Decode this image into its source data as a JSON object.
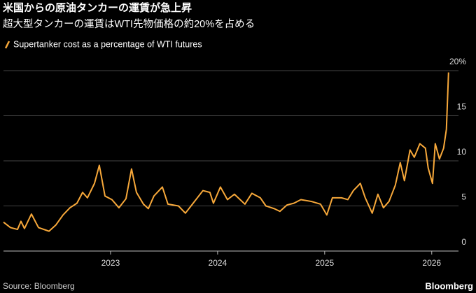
{
  "chart_data": {
    "type": "line",
    "title": "米国からの原油タンカーの運賃が急上昇",
    "subtitle": "超大型タンカーの運賃はWTI先物価格の約20%を占める",
    "source": "Source: Bloomberg",
    "brand": "Bloomberg",
    "x": [
      2022.0,
      2022.065,
      2022.131,
      2022.163,
      2022.196,
      2022.261,
      2022.327,
      2022.425,
      2022.49,
      2022.556,
      2022.621,
      2022.686,
      2022.739,
      2022.784,
      2022.85,
      2022.895,
      2022.948,
      2023.013,
      2023.078,
      2023.144,
      2023.196,
      2023.242,
      2023.307,
      2023.353,
      2023.405,
      2023.484,
      2023.536,
      2023.634,
      2023.699,
      2023.765,
      2023.863,
      2023.928,
      2023.961,
      2024.026,
      2024.092,
      2024.157,
      2024.255,
      2024.32,
      2024.399,
      2024.451,
      2024.529,
      2024.582,
      2024.647,
      2024.712,
      2024.778,
      2024.876,
      2024.961,
      2025.02,
      2025.072,
      2025.157,
      2025.216,
      2025.268,
      2025.333,
      2025.379,
      2025.444,
      2025.497,
      2025.549,
      2025.601,
      2025.66,
      2025.706,
      2025.745,
      2025.797,
      2025.837,
      2025.889,
      2025.941,
      2025.967,
      2026.007,
      2026.033,
      2026.072,
      2026.111,
      2026.137,
      2026.157
    ],
    "series": [
      {
        "name": "Supertanker cost as a percentage of WTI futures",
        "color": "#f7a83a",
        "values": [
          3.2,
          2.6,
          2.4,
          3.3,
          2.5,
          4.1,
          2.6,
          2.2,
          2.9,
          4.0,
          4.8,
          5.3,
          6.5,
          5.9,
          7.5,
          9.5,
          6.1,
          5.7,
          4.8,
          5.8,
          9.1,
          6.5,
          5.2,
          4.7,
          6.1,
          7.1,
          5.2,
          5.0,
          4.2,
          5.2,
          6.7,
          6.5,
          5.3,
          7.1,
          5.7,
          6.3,
          5.2,
          6.4,
          5.9,
          5.0,
          4.7,
          4.4,
          5.1,
          5.3,
          5.7,
          5.5,
          5.2,
          4.0,
          5.9,
          5.9,
          5.7,
          6.7,
          7.5,
          5.9,
          4.2,
          6.3,
          4.8,
          5.5,
          7.3,
          9.8,
          7.8,
          11.2,
          10.4,
          11.9,
          11.4,
          9.2,
          7.5,
          11.9,
          10.2,
          11.4,
          13.5,
          19.8
        ]
      }
    ],
    "xlim": [
      2022,
      2026.25
    ],
    "xticks": [
      2023,
      2024,
      2025,
      2026
    ],
    "ylim": [
      0,
      20
    ],
    "yticks": [
      0,
      5,
      10,
      15,
      {
        "value": 20,
        "label": "20%"
      }
    ],
    "grid": true
  }
}
